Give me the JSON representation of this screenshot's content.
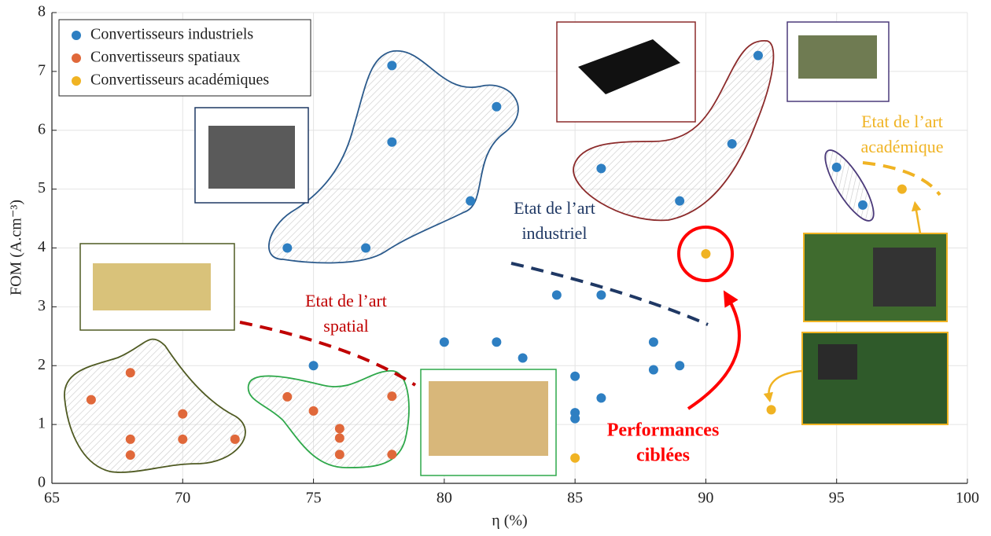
{
  "chart_data": {
    "type": "scatter",
    "xlabel": "η (%)",
    "ylabel": "FOM (A.cm⁻³)",
    "xlim": [
      65,
      100
    ],
    "xticks": [
      65,
      70,
      75,
      80,
      85,
      90,
      95,
      100
    ],
    "ylim": [
      0,
      8
    ],
    "yticks": [
      0,
      1,
      2,
      3,
      4,
      5,
      6,
      7,
      8
    ],
    "grid": true,
    "legend": "upper left",
    "series": [
      {
        "name": "Convertisseurs industriels",
        "color": "#2e7fc2",
        "x": [
          74,
          77,
          78,
          78,
          81,
          82,
          75,
          80,
          82,
          83,
          84.3,
          85,
          85,
          85,
          86,
          86,
          88,
          88,
          89,
          86,
          89,
          91,
          92,
          95,
          96
        ],
        "y": [
          4.0,
          4.0,
          7.1,
          5.8,
          4.8,
          6.4,
          2.0,
          2.4,
          2.4,
          2.13,
          3.2,
          1.82,
          1.2,
          1.1,
          3.2,
          1.45,
          2.4,
          1.93,
          2.0,
          5.35,
          4.8,
          5.77,
          7.27,
          5.37,
          4.73
        ]
      },
      {
        "name": "Convertisseurs spatiaux",
        "color": "#e0683a",
        "x": [
          66.5,
          68,
          68,
          68,
          70,
          70,
          72,
          74,
          75,
          76,
          76,
          76,
          78,
          78
        ],
        "y": [
          1.42,
          1.88,
          0.75,
          0.48,
          1.18,
          0.75,
          0.75,
          1.47,
          1.23,
          0.93,
          0.77,
          0.49,
          1.48,
          0.49
        ]
      },
      {
        "name": "Convertisseurs académiques",
        "color": "#f0b323",
        "x": [
          85,
          90,
          92.5,
          97.5
        ],
        "y": [
          0.43,
          3.9,
          1.25,
          5.0
        ]
      }
    ],
    "annotations": [
      {
        "lines": [
          "Etat de l’art",
          "industriel"
        ],
        "color": "#1f3864"
      },
      {
        "lines": [
          "Etat de l’art",
          "spatial"
        ],
        "color": "#c00000"
      },
      {
        "lines": [
          "Etat de l’art",
          "académique"
        ],
        "color": "#f0b323"
      },
      {
        "lines": [
          "Performances",
          "ciblées"
        ],
        "color": "#ff0000"
      }
    ]
  }
}
